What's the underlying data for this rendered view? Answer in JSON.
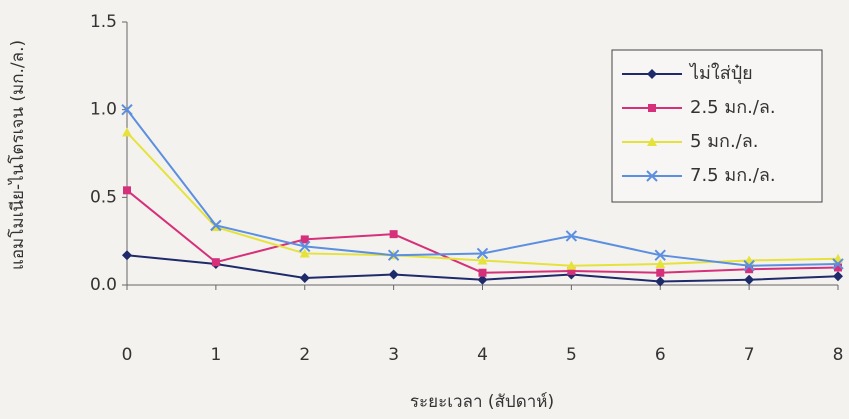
{
  "chart_data": {
    "type": "line",
    "x_label": "ระยะเวลา (สัปดาห์)",
    "y_label": "แอมโมเนีย-ไนโตรเจน (มก./ล.)",
    "x": [
      0,
      1,
      2,
      3,
      4,
      5,
      6,
      7,
      8
    ],
    "xlim": [
      0,
      8
    ],
    "xticks": [
      0,
      1,
      2,
      3,
      4,
      5,
      6,
      7,
      8
    ],
    "ylim": [
      0,
      1.5
    ],
    "yticks": [
      {
        "value": 0,
        "label": "0.0"
      },
      {
        "value": 0.5,
        "label": "0.5"
      },
      {
        "value": 1,
        "label": "1.0"
      },
      {
        "value": 1.5,
        "label": "1.5"
      }
    ],
    "legend": "upper right",
    "series": [
      {
        "name": "ไม่ใส่ปุ๋ย",
        "color": "#1f2a6b",
        "marker": "diamond",
        "values": [
          0.17,
          0.12,
          0.04,
          0.06,
          0.03,
          0.06,
          0.02,
          0.03,
          0.05
        ]
      },
      {
        "name": "2.5 มก./ล.",
        "color": "#d6307a",
        "marker": "square",
        "values": [
          0.54,
          0.13,
          0.26,
          0.29,
          0.07,
          0.08,
          0.07,
          0.09,
          0.1
        ]
      },
      {
        "name": "5 มก./ล.",
        "color": "#e6e23c",
        "marker": "triangle",
        "values": [
          0.87,
          0.33,
          0.18,
          0.17,
          0.14,
          0.11,
          0.12,
          0.14,
          0.15
        ]
      },
      {
        "name": "7.5 มก./ล.",
        "color": "#5b8fe0",
        "marker": "x",
        "values": [
          1.0,
          0.34,
          0.22,
          0.17,
          0.18,
          0.28,
          0.17,
          0.11,
          0.12
        ]
      }
    ]
  }
}
